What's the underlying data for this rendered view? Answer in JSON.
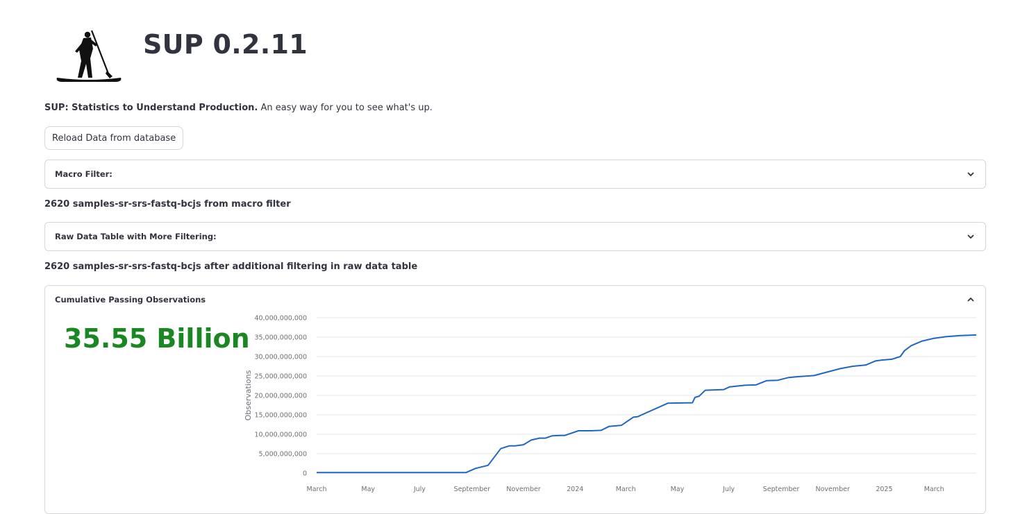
{
  "header": {
    "title": "SUP 0.2.11",
    "description_bold": "SUP: Statistics to Understand Production.",
    "description_rest": " An easy way for you to see what's up."
  },
  "reload_button": {
    "label": "Reload Data from database"
  },
  "macro_filter": {
    "label": "Macro Filter:",
    "expanded": false
  },
  "macro_count_text": "2620 samples-sr-srs-fastq-bcjs from macro filter",
  "raw_table": {
    "label": "Raw Data Table with More Filtering:",
    "expanded": false
  },
  "filtered_count_text": "2620 samples-sr-srs-fastq-bcjs after additional filtering in raw data table",
  "cumulative": {
    "label": "Cumulative Passing Observations",
    "expanded": true,
    "metric": "35.55 Billion"
  },
  "colors": {
    "accent_green": "#1a8722",
    "line_blue": "#1f66c1",
    "text": "#31333f",
    "border": "#d6d6d9"
  },
  "icons": [
    "sup-paddleboarder-logo",
    "chevron-down-icon",
    "chevron-up-icon"
  ],
  "chart_data": {
    "type": "line",
    "ylabel": "Observations",
    "xlabel": "",
    "ylim": [
      0,
      40000000000
    ],
    "y_ticks": [
      {
        "v": 0,
        "label": "0"
      },
      {
        "v": 5000000000,
        "label": "5,000,000,000"
      },
      {
        "v": 10000000000,
        "label": "10,000,000,000"
      },
      {
        "v": 15000000000,
        "label": "15,000,000,000"
      },
      {
        "v": 20000000000,
        "label": "20,000,000,000"
      },
      {
        "v": 25000000000,
        "label": "25,000,000,000"
      },
      {
        "v": 30000000000,
        "label": "30,000,000,000"
      },
      {
        "v": 35000000000,
        "label": "35,000,000,000"
      },
      {
        "v": 40000000000,
        "label": "40,000,000,000"
      }
    ],
    "xlim": [
      "2023-03-01",
      "2025-04-20"
    ],
    "x_ticks": [
      {
        "date": "2023-03-01",
        "label": "March"
      },
      {
        "date": "2023-05-01",
        "label": "May"
      },
      {
        "date": "2023-07-01",
        "label": "July"
      },
      {
        "date": "2023-09-01",
        "label": "September"
      },
      {
        "date": "2023-11-01",
        "label": "November"
      },
      {
        "date": "2024-01-01",
        "label": "2024"
      },
      {
        "date": "2024-03-01",
        "label": "March"
      },
      {
        "date": "2024-05-01",
        "label": "May"
      },
      {
        "date": "2024-07-01",
        "label": "July"
      },
      {
        "date": "2024-09-01",
        "label": "September"
      },
      {
        "date": "2024-11-01",
        "label": "November"
      },
      {
        "date": "2025-01-01",
        "label": "2025"
      },
      {
        "date": "2025-03-01",
        "label": "March"
      }
    ],
    "series": [
      {
        "x": [
          "2023-03-01",
          "2023-08-25",
          "2023-09-05",
          "2023-09-20",
          "2023-10-05",
          "2023-10-15",
          "2023-10-22",
          "2023-11-01",
          "2023-11-10",
          "2023-11-20",
          "2023-11-27",
          "2023-12-05",
          "2023-12-15",
          "2023-12-20",
          "2024-01-05",
          "2024-01-20",
          "2024-02-01",
          "2024-02-10",
          "2024-02-25",
          "2024-03-10",
          "2024-03-15",
          "2024-03-20",
          "2024-04-20",
          "2024-05-19",
          "2024-05-22",
          "2024-05-27",
          "2024-06-03",
          "2024-06-25",
          "2024-07-02",
          "2024-07-20",
          "2024-08-02",
          "2024-08-15",
          "2024-08-28",
          "2024-09-10",
          "2024-09-20",
          "2024-10-10",
          "2024-10-20",
          "2024-11-10",
          "2024-11-25",
          "2024-12-10",
          "2024-12-22",
          "2024-12-30",
          "2025-01-10",
          "2025-01-20",
          "2025-01-25",
          "2025-02-02",
          "2025-02-15",
          "2025-03-01",
          "2025-03-15",
          "2025-04-01",
          "2025-04-20"
        ],
        "y": [
          150000000,
          150000000,
          1200000000,
          2000000000,
          6300000000,
          7000000000,
          7000000000,
          7300000000,
          8500000000,
          9000000000,
          9000000000,
          9600000000,
          9700000000,
          9700000000,
          10900000000,
          10900000000,
          11000000000,
          12000000000,
          12300000000,
          14400000000,
          14500000000,
          15000000000,
          18000000000,
          18100000000,
          19500000000,
          19800000000,
          21300000000,
          21500000000,
          22200000000,
          22600000000,
          22700000000,
          23800000000,
          23900000000,
          24600000000,
          24800000000,
          25100000000,
          25700000000,
          26900000000,
          27500000000,
          27800000000,
          28900000000,
          29100000000,
          29300000000,
          30000000000,
          31500000000,
          32800000000,
          34000000000,
          34700000000,
          35100000000,
          35400000000,
          35550000000
        ]
      }
    ]
  }
}
